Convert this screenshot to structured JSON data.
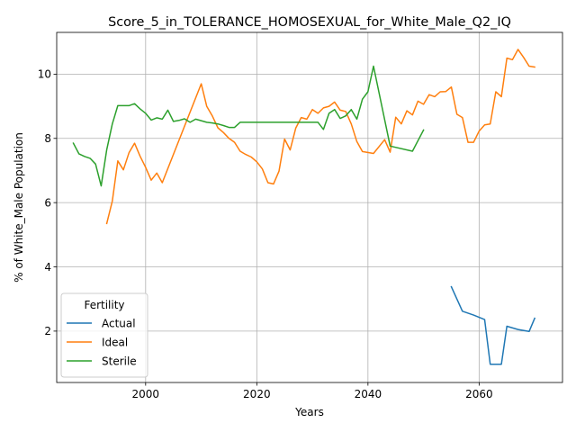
{
  "chart_data": {
    "type": "line",
    "title": "Score_5_in_TOLERANCE_HOMOSEXUAL_for_White_Male_Q2_IQ",
    "xlabel": "Years",
    "ylabel": "% of White_Male Population",
    "xlim": [
      1984,
      2075
    ],
    "ylim": [
      0.4,
      11.3
    ],
    "xticks": [
      2000,
      2020,
      2040,
      2060
    ],
    "yticks": [
      2,
      4,
      6,
      8,
      10
    ],
    "grid": true,
    "legend": {
      "title": "Fertility",
      "placement": "lower-left"
    },
    "series": [
      {
        "name": "Actual",
        "color": "#1f77b4",
        "x": [
          2055,
          2057,
          2059,
          2061,
          2062,
          2064,
          2065,
          2067,
          2069,
          2070
        ],
        "y": [
          3.38,
          2.62,
          2.5,
          2.36,
          0.97,
          0.97,
          2.15,
          2.05,
          1.99,
          2.4
        ]
      },
      {
        "name": "Ideal",
        "color": "#ff7f0e",
        "x": [
          1993,
          1994,
          1995,
          1996,
          1997,
          1998,
          1999,
          2000,
          2001,
          2002,
          2003,
          2010,
          2011,
          2012,
          2013,
          2014,
          2015,
          2016,
          2017,
          2018,
          2019,
          2020,
          2021,
          2022,
          2023,
          2024,
          2025,
          2026,
          2027,
          2028,
          2029,
          2030,
          2031,
          2032,
          2033,
          2034,
          2035,
          2036,
          2037,
          2038,
          2039,
          2041,
          2043,
          2044,
          2045,
          2046,
          2047,
          2048,
          2049,
          2050,
          2051,
          2052,
          2053,
          2054,
          2055,
          2056,
          2057,
          2058,
          2059,
          2060,
          2061,
          2062,
          2063,
          2064,
          2065,
          2066,
          2067,
          2068,
          2069,
          2070
        ],
        "y": [
          5.35,
          6.05,
          7.3,
          7.02,
          7.55,
          7.85,
          7.45,
          7.1,
          6.7,
          6.92,
          6.62,
          9.7,
          9.0,
          8.7,
          8.33,
          8.18,
          8.0,
          7.88,
          7.6,
          7.5,
          7.42,
          7.27,
          7.05,
          6.62,
          6.58,
          6.98,
          7.98,
          7.64,
          8.32,
          8.65,
          8.6,
          8.9,
          8.78,
          8.95,
          9.0,
          9.13,
          8.88,
          8.84,
          8.45,
          7.9,
          7.59,
          7.53,
          7.96,
          7.57,
          8.66,
          8.45,
          8.86,
          8.73,
          9.16,
          9.06,
          9.36,
          9.3,
          9.45,
          9.46,
          9.6,
          8.75,
          8.65,
          7.88,
          7.88,
          8.23,
          8.42,
          8.45,
          9.45,
          9.3,
          10.5,
          10.45,
          10.77,
          10.52,
          10.25,
          10.22
        ]
      },
      {
        "name": "Sterile",
        "color": "#2ca02c",
        "x": [
          1987,
          1988,
          1989,
          1990,
          1991,
          1992,
          1993,
          1994,
          1995,
          1996,
          1997,
          1998,
          1999,
          2000,
          2001,
          2002,
          2003,
          2004,
          2005,
          2006,
          2007,
          2008,
          2009,
          2010,
          2011,
          2012,
          2013,
          2014,
          2015,
          2016,
          2017,
          2031,
          2032,
          2033,
          2034,
          2035,
          2036,
          2037,
          2038,
          2039,
          2040,
          2041,
          2044,
          2048,
          2050
        ],
        "y": [
          7.85,
          7.52,
          7.44,
          7.38,
          7.2,
          6.52,
          7.65,
          8.45,
          9.02,
          9.02,
          9.02,
          9.08,
          8.92,
          8.78,
          8.57,
          8.64,
          8.6,
          8.88,
          8.53,
          8.56,
          8.61,
          8.5,
          8.6,
          8.55,
          8.5,
          8.48,
          8.45,
          8.4,
          8.34,
          8.34,
          8.5,
          8.5,
          8.28,
          8.78,
          8.9,
          8.62,
          8.7,
          8.9,
          8.6,
          9.22,
          9.45,
          10.25,
          7.76,
          7.6,
          8.26
        ]
      }
    ]
  }
}
